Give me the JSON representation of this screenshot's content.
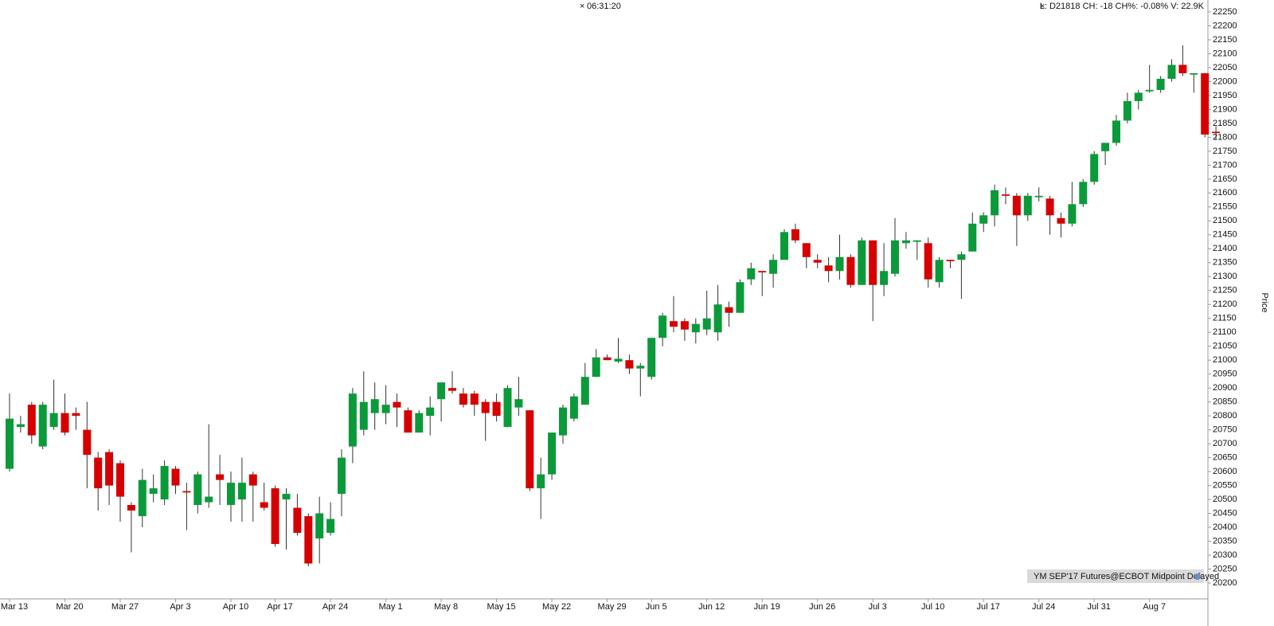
{
  "chart_data": {
    "type": "candlestick",
    "time": "06:31:20",
    "status": "L: D21818 CH: -18 CH%: -0.08% V: 22.9K",
    "ylabel": "Price",
    "source": "YM SEP'17 Futures@ECBOT Midpoint Delayed",
    "up_color": "#0b9a3a",
    "down_color": "#d60000",
    "categories": [
      "Mar 13",
      null,
      null,
      null,
      null,
      "Mar 20",
      null,
      null,
      null,
      null,
      "Mar 27",
      null,
      null,
      null,
      null,
      "Apr 3",
      null,
      null,
      null,
      null,
      "Apr 10",
      null,
      null,
      null,
      "Apr 17",
      null,
      null,
      null,
      null,
      "Apr 24",
      null,
      null,
      null,
      null,
      "May 1",
      null,
      null,
      null,
      null,
      "May 8",
      null,
      null,
      null,
      null,
      "May 15",
      null,
      null,
      null,
      null,
      "May 22",
      null,
      null,
      null,
      null,
      "May 29",
      null,
      null,
      null,
      "Jun 5",
      null,
      null,
      null,
      null,
      "Jun 12",
      null,
      null,
      null,
      null,
      "Jun 19",
      null,
      null,
      null,
      null,
      "Jun 26",
      null,
      null,
      null,
      null,
      "Jul 3",
      null,
      null,
      null,
      null,
      "Jul 10",
      null,
      null,
      null,
      null,
      "Jul 17",
      null,
      null,
      null,
      null,
      "Jul 24",
      null,
      null,
      null,
      null,
      "Jul 31",
      null,
      null,
      null,
      null,
      "Aug 7",
      null,
      null,
      null,
      null,
      null,
      null
    ],
    "open": [
      20610,
      20760,
      20840,
      20690,
      20760,
      20810,
      20810,
      20750,
      20650,
      20670,
      20630,
      20480,
      20440,
      20520,
      20500,
      20610,
      20530,
      20480,
      20490,
      20590,
      20480,
      20500,
      20590,
      20490,
      20540,
      20500,
      20470,
      20440,
      20360,
      20380,
      20520,
      20690,
      20750,
      20810,
      20810,
      20850,
      20820,
      20740,
      20800,
      20860,
      20900,
      20880,
      20880,
      20850,
      20850,
      20760,
      20830,
      20820,
      20540,
      20590,
      20730,
      20790,
      20840,
      20940,
      21010,
      20995,
      21000,
      20970,
      20940,
      21080,
      21140,
      21140,
      21100,
      21110,
      21100,
      21190,
      21170,
      21290,
      21320,
      21310,
      21360,
      21470,
      21420,
      21360,
      21340,
      21320,
      21370,
      21270,
      21430,
      21270,
      21310,
      21420,
      21425,
      21420,
      21280,
      21360,
      21360,
      21390,
      21490,
      21520,
      21595,
      21590,
      21520,
      21585,
      21580,
      21510,
      21490,
      21560,
      21640,
      21750,
      21780,
      21860,
      21930,
      21965,
      21970,
      22010,
      22060,
      22025,
      22030,
      21820
    ],
    "high": [
      20880,
      20800,
      20850,
      20850,
      20930,
      20880,
      20830,
      20850,
      20670,
      20680,
      20640,
      20490,
      20610,
      20590,
      20640,
      20620,
      20560,
      20600,
      20770,
      20660,
      20600,
      20650,
      20600,
      20560,
      20550,
      20540,
      20520,
      20450,
      20510,
      20490,
      20680,
      20900,
      20960,
      20920,
      20910,
      20880,
      20830,
      20820,
      20870,
      20920,
      20960,
      20900,
      20890,
      20860,
      20880,
      20910,
      20940,
      20820,
      20650,
      20740,
      20840,
      20880,
      20990,
      21040,
      21020,
      21080,
      21020,
      20990,
      21080,
      21170,
      21230,
      21150,
      21150,
      21250,
      21270,
      21210,
      21290,
      21350,
      21320,
      21380,
      21470,
      21490,
      21420,
      21380,
      21370,
      21450,
      21380,
      21440,
      21430,
      21420,
      21510,
      21460,
      21430,
      21440,
      21370,
      21360,
      21390,
      21530,
      21530,
      21630,
      21620,
      21600,
      21600,
      21620,
      21590,
      21530,
      21640,
      21650,
      21750,
      21780,
      21880,
      21960,
      21970,
      22060,
      22020,
      22080,
      22130,
      22030,
      22030,
      21840
    ],
    "low": [
      20600,
      20740,
      20700,
      20680,
      20750,
      20730,
      20750,
      20540,
      20460,
      20480,
      20420,
      20310,
      20400,
      20490,
      20480,
      20520,
      20390,
      20450,
      20470,
      20480,
      20420,
      20420,
      20420,
      20460,
      20330,
      20320,
      20370,
      20260,
      20270,
      20370,
      20440,
      20630,
      20730,
      20750,
      20770,
      20760,
      20740,
      20740,
      20730,
      20780,
      20880,
      20830,
      20800,
      20710,
      20780,
      20760,
      20800,
      20530,
      20430,
      20570,
      20700,
      20780,
      20840,
      20940,
      21000,
      20990,
      20950,
      20870,
      20930,
      21050,
      21100,
      21070,
      21060,
      21090,
      21070,
      21120,
      21170,
      21270,
      21230,
      21260,
      21360,
      21420,
      21330,
      21330,
      21280,
      21290,
      21260,
      21270,
      21140,
      21230,
      21300,
      21400,
      21360,
      21260,
      21260,
      21330,
      21220,
      21390,
      21460,
      21480,
      21560,
      21410,
      21500,
      21570,
      21450,
      21440,
      21480,
      21550,
      21630,
      21700,
      21770,
      21850,
      21900,
      21960,
      21960,
      22000,
      22020,
      21960,
      21800,
      21790
    ],
    "close": [
      20790,
      20770,
      20730,
      20840,
      20810,
      20740,
      20800,
      20660,
      20540,
      20550,
      20510,
      20460,
      20570,
      20540,
      20620,
      20550,
      20525,
      20590,
      20510,
      20570,
      20560,
      20560,
      20550,
      20470,
      20340,
      20520,
      20380,
      20270,
      20450,
      20430,
      20650,
      20880,
      20850,
      20860,
      20840,
      20830,
      20740,
      20810,
      20830,
      20920,
      20890,
      20840,
      20840,
      20810,
      20800,
      20900,
      20860,
      20540,
      20590,
      20740,
      20830,
      20870,
      20940,
      21010,
      21000,
      21005,
      20970,
      20980,
      21080,
      21160,
      21120,
      21110,
      21130,
      21150,
      21200,
      21170,
      21280,
      21330,
      21315,
      21360,
      21460,
      21430,
      21370,
      21350,
      21320,
      21370,
      21270,
      21430,
      21270,
      21320,
      21430,
      21430,
      21430,
      21290,
      21360,
      21355,
      21380,
      21490,
      21520,
      21610,
      21590,
      21520,
      21590,
      21590,
      21520,
      21490,
      21560,
      21640,
      21740,
      21780,
      21860,
      21930,
      21960,
      21970,
      22010,
      22060,
      22030,
      22030,
      21810,
      21815
    ],
    "ylim": [
      20175,
      22275
    ],
    "yticks": [
      20200,
      20250,
      20300,
      20350,
      20400,
      20450,
      20500,
      20550,
      20600,
      20650,
      20700,
      20750,
      20800,
      20850,
      20900,
      20950,
      21000,
      21050,
      21100,
      21150,
      21200,
      21250,
      21300,
      21350,
      21400,
      21450,
      21500,
      21550,
      21600,
      21650,
      21700,
      21750,
      21800,
      21850,
      21900,
      21950,
      22000,
      22050,
      22100,
      22150,
      22200,
      22250
    ]
  }
}
